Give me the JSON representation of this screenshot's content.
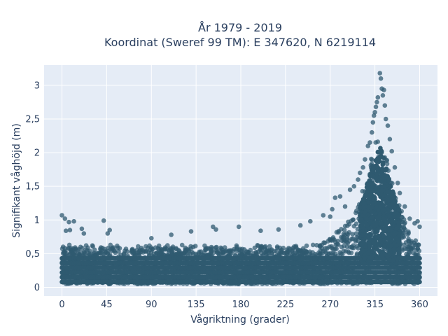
{
  "chart_data": {
    "type": "scatter",
    "title_lines": [
      "År 1979 - 2019",
      "Koordinat (Sweref 99 TM): E 347620, N 6219114"
    ],
    "xlabel": "Vågriktning (grader)",
    "ylabel": "Signifikant våghöjd (m)",
    "xlim": [
      -18,
      378
    ],
    "ylim": [
      -0.13,
      3.3
    ],
    "xticks": [
      0,
      45,
      90,
      135,
      180,
      225,
      270,
      315,
      360
    ],
    "xtick_labels": [
      "0",
      "45",
      "90",
      "135",
      "180",
      "225",
      "270",
      "315",
      "360"
    ],
    "yticks": [
      0,
      0.5,
      1,
      1.5,
      2,
      2.5,
      3
    ],
    "ytick_labels": [
      "0",
      "0,5",
      "1",
      "1,5",
      "2",
      "2,5",
      "3"
    ],
    "grid": true,
    "legend": false,
    "marker_color": "#2f5a70",
    "plot_bg": "#e5ecf6",
    "series": [
      {
        "points": [
          [
            0,
            1.07
          ],
          [
            3,
            1.02
          ],
          [
            4,
            0.84
          ],
          [
            7,
            0.97
          ],
          [
            12,
            0.98
          ],
          [
            8,
            0.85
          ],
          [
            20,
            0.87
          ],
          [
            22,
            0.8
          ],
          [
            42,
            0.99
          ],
          [
            48,
            0.85
          ],
          [
            46,
            0.8
          ],
          [
            90,
            0.73
          ],
          [
            110,
            0.78
          ],
          [
            130,
            0.83
          ],
          [
            152,
            0.9
          ],
          [
            155,
            0.86
          ],
          [
            178,
            0.9
          ],
          [
            200,
            0.84
          ],
          [
            218,
            0.86
          ],
          [
            240,
            0.92
          ],
          [
            250,
            0.98
          ],
          [
            263,
            1.07
          ],
          [
            270,
            1.05
          ],
          [
            272,
            1.16
          ],
          [
            275,
            1.33
          ],
          [
            280,
            1.35
          ],
          [
            285,
            1.2
          ],
          [
            290,
            1.45
          ],
          [
            294,
            1.5
          ],
          [
            298,
            1.6
          ],
          [
            300,
            1.7
          ],
          [
            303,
            1.78
          ],
          [
            305,
            1.9
          ],
          [
            308,
            2.1
          ],
          [
            310,
            2.15
          ],
          [
            312,
            2.3
          ],
          [
            313,
            2.45
          ],
          [
            314,
            2.55
          ],
          [
            315,
            2.6
          ],
          [
            316,
            2.68
          ],
          [
            317,
            2.75
          ],
          [
            318,
            2.82
          ],
          [
            320,
            3.18
          ],
          [
            321,
            3.1
          ],
          [
            322,
            2.95
          ],
          [
            324,
            2.93
          ],
          [
            323,
            2.85
          ],
          [
            325,
            2.7
          ],
          [
            326,
            2.5
          ],
          [
            328,
            2.4
          ],
          [
            330,
            2.2
          ],
          [
            332,
            2.02
          ],
          [
            335,
            1.78
          ],
          [
            338,
            1.55
          ],
          [
            340,
            1.4
          ],
          [
            345,
            1.2
          ],
          [
            350,
            1.02
          ],
          [
            355,
            0.95
          ],
          [
            358,
            0.98
          ],
          [
            360,
            0.9
          ]
        ]
      }
    ]
  }
}
